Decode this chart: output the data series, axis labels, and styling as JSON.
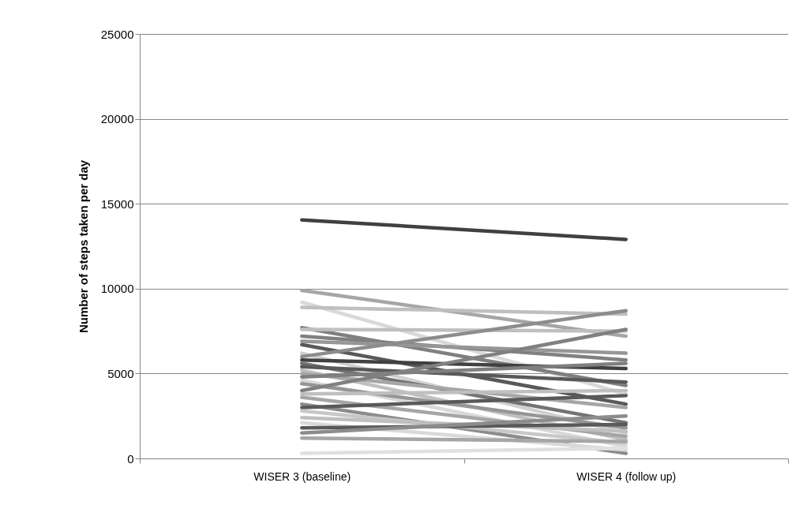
{
  "chart_data": {
    "type": "line",
    "ylabel": "Number of steps taken per day",
    "categories": [
      "WISER 3 (baseline)",
      "WISER 4 (follow up)"
    ],
    "ylim": [
      0,
      25000
    ],
    "yticks": [
      0,
      5000,
      10000,
      15000,
      20000,
      25000
    ],
    "grid": "y",
    "marker": "none",
    "line_style": "solid",
    "series": [
      {
        "color": "#404040",
        "values": [
          14050,
          12900
        ]
      },
      {
        "color": "#a6a6a6",
        "values": [
          9900,
          7200
        ]
      },
      {
        "color": "#d9d9d9",
        "values": [
          9200,
          3800
        ]
      },
      {
        "color": "#bfbfbf",
        "values": [
          8900,
          8500
        ]
      },
      {
        "color": "#7f7f7f",
        "values": [
          7700,
          4300
        ]
      },
      {
        "color": "#bfbfbf",
        "values": [
          7600,
          7500
        ]
      },
      {
        "color": "#808080",
        "values": [
          7200,
          5800
        ]
      },
      {
        "color": "#969696",
        "values": [
          6900,
          6200
        ]
      },
      {
        "color": "#595959",
        "values": [
          6700,
          3200
        ]
      },
      {
        "color": "#d0d0d0",
        "values": [
          6200,
          1500
        ]
      },
      {
        "color": "#8c8c8c",
        "values": [
          6000,
          8700
        ]
      },
      {
        "color": "#404040",
        "values": [
          5800,
          5300
        ]
      },
      {
        "color": "#737373",
        "values": [
          5600,
          2100
        ]
      },
      {
        "color": "#595959",
        "values": [
          5400,
          4500
        ]
      },
      {
        "color": "#bfbfbf",
        "values": [
          5200,
          1100
        ]
      },
      {
        "color": "#a6a6a6",
        "values": [
          5000,
          3000
        ]
      },
      {
        "color": "#7f7f7f",
        "values": [
          4800,
          5600
        ]
      },
      {
        "color": "#d9d9d9",
        "values": [
          4600,
          700
        ]
      },
      {
        "color": "#969696",
        "values": [
          4400,
          1800
        ]
      },
      {
        "color": "#808080",
        "values": [
          4000,
          7600
        ]
      },
      {
        "color": "#bfbfbf",
        "values": [
          3800,
          4000
        ]
      },
      {
        "color": "#a6a6a6",
        "values": [
          3600,
          1300
        ]
      },
      {
        "color": "#8c8c8c",
        "values": [
          3200,
          300
        ]
      },
      {
        "color": "#595959",
        "values": [
          3000,
          3700
        ]
      },
      {
        "color": "#c8c8c8",
        "values": [
          2800,
          900
        ]
      },
      {
        "color": "#bfbfbf",
        "values": [
          2400,
          1600
        ]
      },
      {
        "color": "#d9d9d9",
        "values": [
          2100,
          500
        ]
      },
      {
        "color": "#595959",
        "values": [
          1800,
          2000
        ]
      },
      {
        "color": "#8c8c8c",
        "values": [
          1500,
          2500
        ]
      },
      {
        "color": "#a6a6a6",
        "values": [
          1200,
          1000
        ]
      },
      {
        "color": "#e0e0e0",
        "values": [
          300,
          600
        ]
      }
    ]
  }
}
